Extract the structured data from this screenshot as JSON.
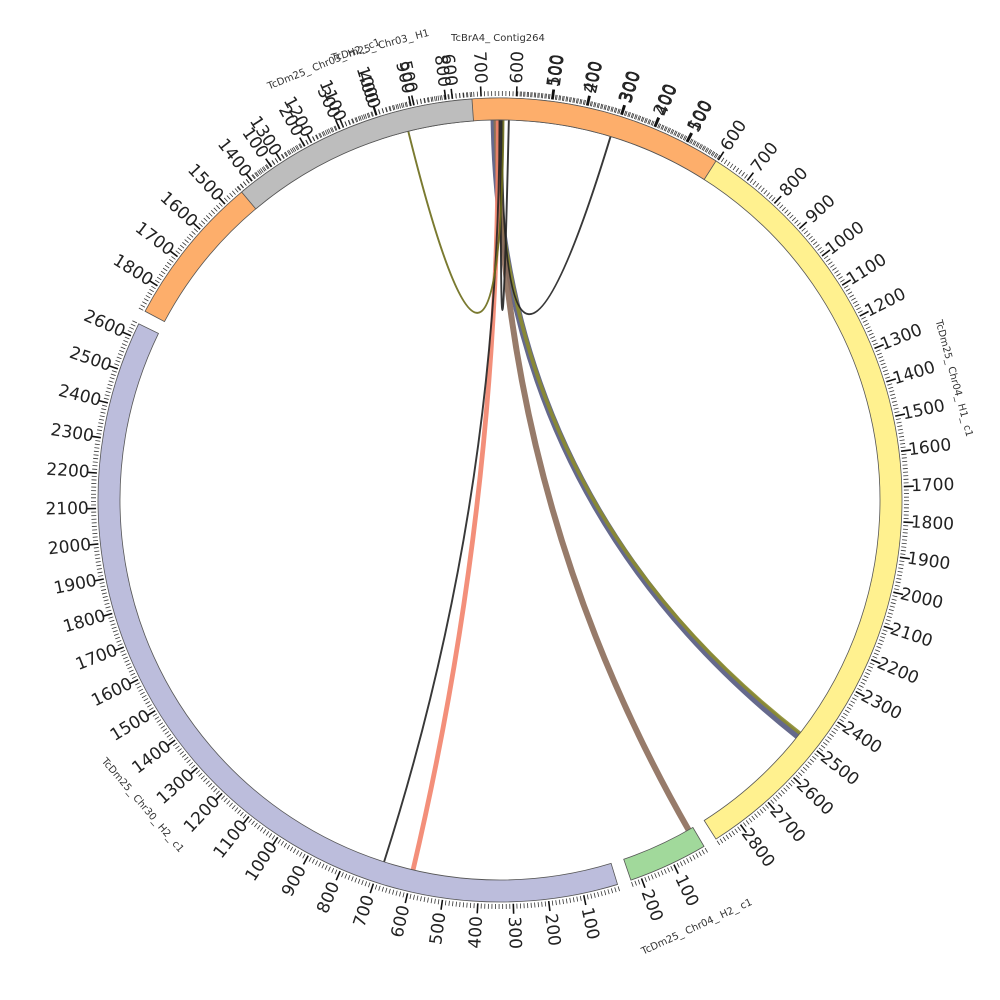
{
  "chart_data": {
    "type": "circos",
    "title": "",
    "tick_step": 100,
    "minor_tick_step": 10,
    "segments": [
      {
        "id": "contig264",
        "name": "TcBrA4_ Contig264",
        "length": 60,
        "start_deg": -1.5,
        "end_deg": 1.0,
        "color": "#9ecae1",
        "ticks": false
      },
      {
        "id": "chr04h1",
        "name": "TcDm25_ Chr04_ H1_ c1",
        "length": 2880,
        "start_deg": 2.5,
        "end_deg": 147.5,
        "color": "#fff18f",
        "ticks": true
      },
      {
        "id": "chr04h2",
        "name": "TcDm25_ Chr04_ H2_ c1",
        "length": 230,
        "start_deg": 149.5,
        "end_deg": 161.0,
        "color": "#a1d99b",
        "ticks": true
      },
      {
        "id": "chr30h2",
        "name": "TcDm25_ Chr30_ H2_ c1",
        "length": 2640,
        "start_deg": 163.0,
        "end_deg": 296.0,
        "color": "#bcbddc",
        "ticks": true
      },
      {
        "id": "chr03h1",
        "name": "TcDm25_ Chr03_ H1",
        "length": 1880,
        "start_deg": 298.0,
        "end_deg": 392.5,
        "color": "#fdae6b",
        "ticks": true,
        "reverse": true
      },
      {
        "id": "chr03h2",
        "name": "TcDm25_ Chr03_ H2_ c1",
        "length": 650,
        "start_deg": 320.0,
        "end_deg": 356.0,
        "color": "#bdbdbd",
        "ticks": true
      }
    ],
    "links": [
      {
        "from": "contig264",
        "to": "chr04h1",
        "to_pos": 2500,
        "width": 3,
        "color": "#54597f"
      },
      {
        "from": "contig264",
        "to": "chr04h1",
        "to_pos": 2490,
        "width": 1.5,
        "color": "#8c8c2e"
      },
      {
        "from": "contig264",
        "to": "chr04h2",
        "to_pos": 15,
        "width": 2.5,
        "color": "#8c6d5a"
      },
      {
        "from": "contig264",
        "to": "chr30h2",
        "to_pos": 600,
        "width": 2,
        "color": "#f2836b"
      },
      {
        "from": "contig264",
        "to": "chr30h2",
        "to_pos": 690,
        "width": 0.8,
        "color": "#222222"
      },
      {
        "from": "contig264",
        "to": "chr03h1",
        "to_pos": 620,
        "width": 0.8,
        "color": "#222222"
      },
      {
        "from": "contig264",
        "to": "chr03h1",
        "to_pos": 310,
        "width": 0.8,
        "color": "#222222"
      },
      {
        "from": "contig264",
        "to": "chr03h2",
        "to_pos": 470,
        "width": 0.8,
        "color": "#6b6b1a"
      }
    ]
  }
}
